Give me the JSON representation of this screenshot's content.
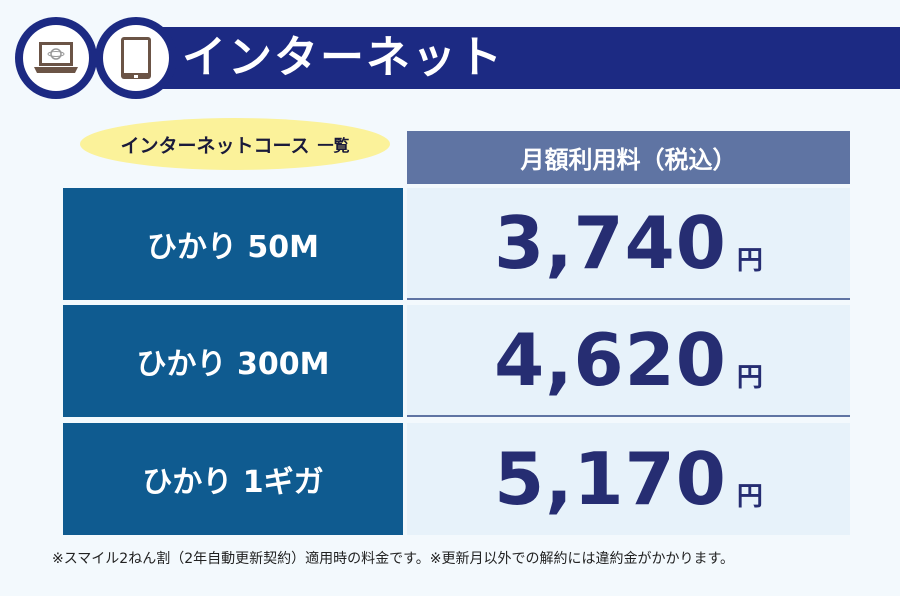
{
  "header": {
    "title": "インターネット",
    "icons": [
      "laptop-globe-icon",
      "tablet-icon"
    ],
    "color": "#1c2a83"
  },
  "course_label": {
    "main": "インターネットコース",
    "suffix": "一覧"
  },
  "price_header": "月額利用料（税込）",
  "plans": [
    {
      "name": "ひかり 50M",
      "price": "3,740",
      "unit": "円"
    },
    {
      "name": "ひかり 300M",
      "price": "4,620",
      "unit": "円"
    },
    {
      "name": "ひかり 1ギガ",
      "price": "5,170",
      "unit": "円"
    }
  ],
  "footnote": "※スマイル2ねん割（2年自動更新契約）適用時の料金です。※更新月以外での解約には違約金がかかります。"
}
